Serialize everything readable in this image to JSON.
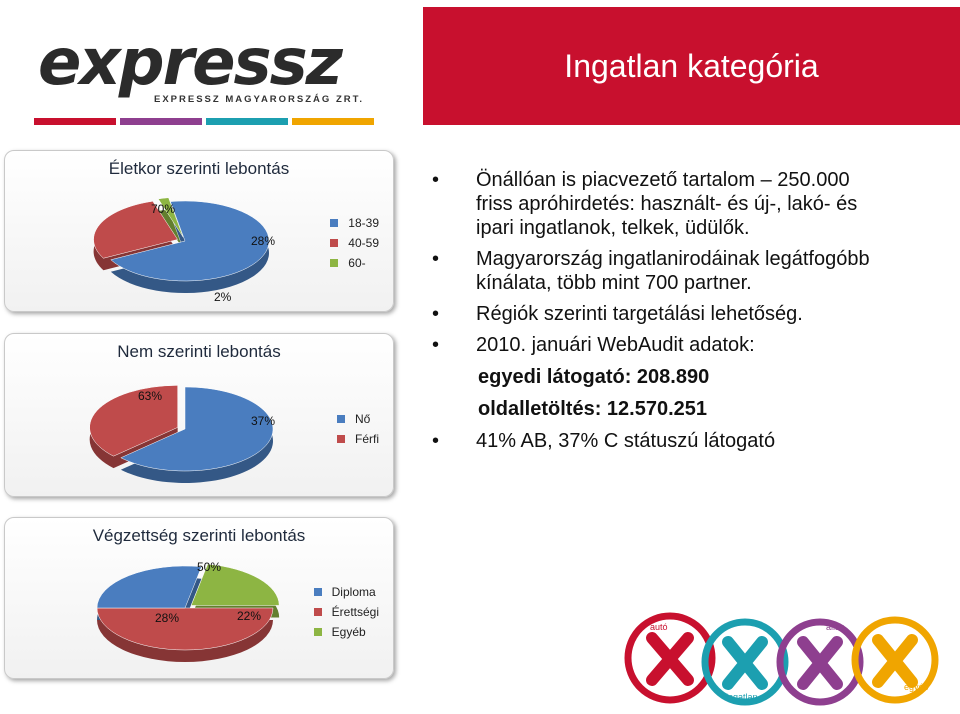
{
  "logo": {
    "brand": "expressz",
    "subtitle": "EXPRESSZ MAGYARORSZÁG ZRT."
  },
  "header": {
    "title": "Ingatlan kategória"
  },
  "chart_data": [
    {
      "type": "pie",
      "title": "Életkor szerinti lebontás",
      "categories": [
        "18-39",
        "40-59",
        "60-"
      ],
      "values": [
        70,
        28,
        2
      ],
      "labels": [
        "70%",
        "28%",
        "2%"
      ],
      "colors": [
        "#4a7dbf",
        "#bf4b4b",
        "#8db543"
      ],
      "legend": "right"
    },
    {
      "type": "pie",
      "title": "Nem szerinti lebontás",
      "categories": [
        "Nő",
        "Férfi"
      ],
      "values": [
        63,
        37
      ],
      "labels": [
        "63%",
        "37%"
      ],
      "colors": [
        "#4a7dbf",
        "#bf4b4b"
      ],
      "legend": "right"
    },
    {
      "type": "pie",
      "title": "Végzettség szerinti lebontás",
      "categories": [
        "Diploma",
        "Érettségi",
        "Egyéb"
      ],
      "values": [
        28,
        50,
        22
      ],
      "labels": [
        "28%",
        "50%",
        "22%"
      ],
      "colors": [
        "#4a7dbf",
        "#bf4b4b",
        "#8db543"
      ],
      "legend": "right"
    }
  ],
  "bullets": [
    "Önállóan is piacvezető tartalom – 250.000 friss apróhirdetés: használt- és új-, lakó- és ipari ingatlanok, telkek, üdülők.",
    "Magyarország ingatlanirodáinak legátfogóbb kínálata, több mint 700 partner.",
    "Régiók szerinti targetálási lehetőség.",
    "2010. januári WebAudit adatok:"
  ],
  "stats": [
    "egyedi látogató: 208.890",
    "oldalletöltés: 12.570.251"
  ],
  "last_bullet": "41% AB, 37% C státuszú látogató",
  "mini_logos": [
    "autó",
    "ingatlan",
    "állás",
    "egyéb"
  ],
  "colors": {
    "brand_red": "#c8102e",
    "stripe_purple": "#8e3f8f",
    "stripe_teal": "#1c9fb0",
    "stripe_orange": "#f0a500"
  }
}
